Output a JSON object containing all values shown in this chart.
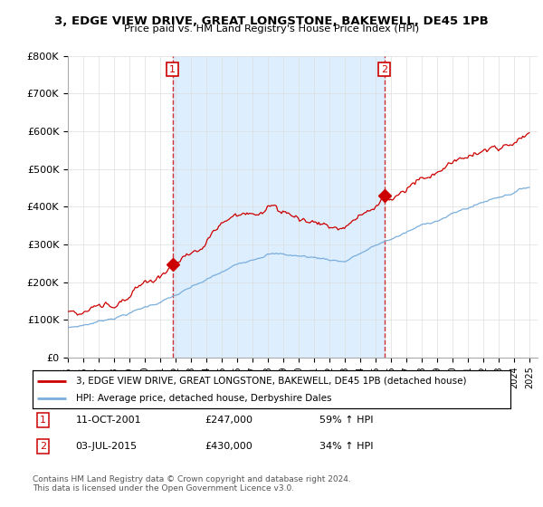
{
  "title": "3, EDGE VIEW DRIVE, GREAT LONGSTONE, BAKEWELL, DE45 1PB",
  "subtitle": "Price paid vs. HM Land Registry's House Price Index (HPI)",
  "line1_label": "3, EDGE VIEW DRIVE, GREAT LONGSTONE, BAKEWELL, DE45 1PB (detached house)",
  "line1_color": "#cc0000",
  "line2_label": "HPI: Average price, detached house, Derbyshire Dales",
  "line2_color": "#7aaedc",
  "sale1_date": "11-OCT-2001",
  "sale1_price": 247000,
  "sale1_pct": "59%",
  "sale2_date": "03-JUL-2015",
  "sale2_price": 430000,
  "sale2_pct": "34%",
  "footer1": "Contains HM Land Registry data © Crown copyright and database right 2024.",
  "footer2": "This data is licensed under the Open Government Licence v3.0.",
  "ylim": [
    0,
    800000
  ],
  "ytick_vals": [
    0,
    100000,
    200000,
    300000,
    400000,
    500000,
    600000,
    700000,
    800000
  ],
  "ytick_labels": [
    "£0",
    "£100K",
    "£200K",
    "£300K",
    "£400K",
    "£500K",
    "£600K",
    "£700K",
    "£800K"
  ],
  "shade_color": "#ddeeff",
  "bg_color": "#ffffff",
  "grid_color": "#dddddd"
}
